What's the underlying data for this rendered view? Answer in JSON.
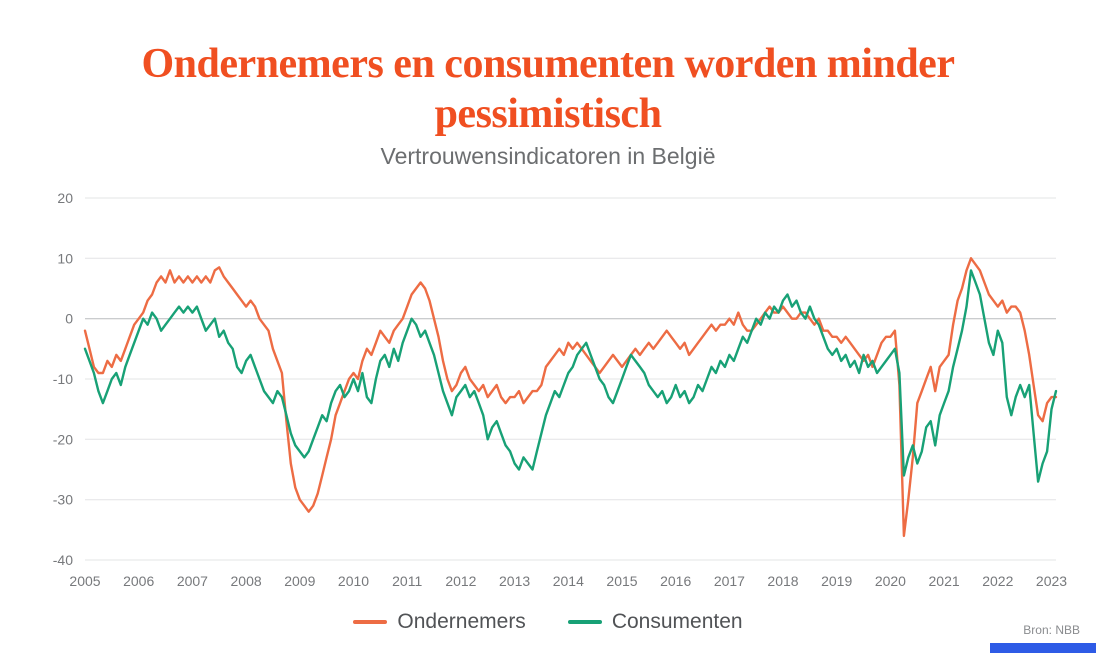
{
  "header": {
    "title": "Ondernemers en consumenten worden minder pessimistisch"
  },
  "colors": {
    "title": "#F04F21",
    "grid": "#E3E4E6",
    "zero_line": "#B9BCBE",
    "tick_text": "#77797C",
    "accent_bar": "#2E5BE6",
    "ondernemers_line": "#ED6C44",
    "consumenten_line": "#18A176"
  },
  "chart_data": {
    "type": "line",
    "title": "Vertrouwensindicatoren in België",
    "frequency": "monthly",
    "x_start": "2005-01",
    "x_tick_labels": [
      "2005",
      "2006",
      "2007",
      "2008",
      "2009",
      "2010",
      "2011",
      "2012",
      "2013",
      "2014",
      "2015",
      "2016",
      "2017",
      "2018",
      "2019",
      "2020",
      "2021",
      "2022",
      "2023"
    ],
    "ylim": [
      -40,
      20
    ],
    "yticks": [
      20,
      10,
      0,
      -10,
      -20,
      -30,
      -40
    ],
    "grid": true,
    "legend_position": "bottom",
    "series": [
      {
        "name": "Ondernemers",
        "color": "#ED6C44",
        "values": [
          -2,
          -5,
          -8,
          -9,
          -9,
          -7,
          -8,
          -6,
          -7,
          -5,
          -3,
          -1,
          0,
          1,
          3,
          4,
          6,
          7,
          6,
          8,
          6,
          7,
          6,
          7,
          6,
          7,
          6,
          7,
          6,
          8,
          8.5,
          7,
          6,
          5,
          4,
          3,
          2,
          3,
          2,
          0,
          -1,
          -2,
          -5,
          -7,
          -9,
          -17,
          -24,
          -28,
          -30,
          -31,
          -32,
          -31,
          -29,
          -26,
          -23,
          -20,
          -16,
          -14,
          -12,
          -10,
          -9,
          -10,
          -7,
          -5,
          -6,
          -4,
          -2,
          -3,
          -4,
          -2,
          -1,
          0,
          2,
          4,
          5,
          6,
          5,
          3,
          0,
          -3,
          -7,
          -10,
          -12,
          -11,
          -9,
          -8,
          -10,
          -11,
          -12,
          -11,
          -13,
          -12,
          -11,
          -13,
          -14,
          -13,
          -13,
          -12,
          -14,
          -13,
          -12,
          -12,
          -11,
          -8,
          -7,
          -6,
          -5,
          -6,
          -4,
          -5,
          -4,
          -5,
          -6,
          -7,
          -8,
          -9,
          -8,
          -7,
          -6,
          -7,
          -8,
          -7,
          -6,
          -5,
          -6,
          -5,
          -4,
          -5,
          -4,
          -3,
          -2,
          -3,
          -4,
          -5,
          -4,
          -6,
          -5,
          -4,
          -3,
          -2,
          -1,
          -2,
          -1,
          -1,
          0,
          -1,
          1,
          -1,
          -2,
          -2,
          -1,
          0,
          1,
          2,
          1,
          1,
          2,
          1,
          0,
          0,
          1,
          1,
          0,
          -1,
          0,
          -2,
          -2,
          -3,
          -3,
          -4,
          -3,
          -4,
          -5,
          -6,
          -7,
          -6,
          -8,
          -6,
          -4,
          -3,
          -3,
          -2,
          -11,
          -36,
          -30,
          -23,
          -14,
          -12,
          -10,
          -8,
          -12,
          -8,
          -7,
          -6,
          -1,
          3,
          5,
          8,
          10,
          9,
          8,
          6,
          4,
          3,
          2,
          3,
          1,
          2,
          2,
          1,
          -2,
          -6,
          -11,
          -16,
          -17,
          -14,
          -13,
          -13
        ]
      },
      {
        "name": "Consumenten",
        "color": "#18A176",
        "values": [
          -5,
          -7,
          -9,
          -12,
          -14,
          -12,
          -10,
          -9,
          -11,
          -8,
          -6,
          -4,
          -2,
          0,
          -1,
          1,
          0,
          -2,
          -1,
          0,
          1,
          2,
          1,
          2,
          1,
          2,
          0,
          -2,
          -1,
          0,
          -3,
          -2,
          -4,
          -5,
          -8,
          -9,
          -7,
          -6,
          -8,
          -10,
          -12,
          -13,
          -14,
          -12,
          -13,
          -16,
          -19,
          -21,
          -22,
          -23,
          -22,
          -20,
          -18,
          -16,
          -17,
          -14,
          -12,
          -11,
          -13,
          -12,
          -10,
          -12,
          -9,
          -13,
          -14,
          -10,
          -7,
          -6,
          -8,
          -5,
          -7,
          -4,
          -2,
          0,
          -1,
          -3,
          -2,
          -4,
          -6,
          -9,
          -12,
          -14,
          -16,
          -13,
          -12,
          -11,
          -13,
          -12,
          -14,
          -16,
          -20,
          -18,
          -17,
          -19,
          -21,
          -22,
          -24,
          -25,
          -23,
          -24,
          -25,
          -22,
          -19,
          -16,
          -14,
          -12,
          -13,
          -11,
          -9,
          -8,
          -6,
          -5,
          -4,
          -6,
          -8,
          -10,
          -11,
          -13,
          -14,
          -12,
          -10,
          -8,
          -6,
          -7,
          -8,
          -9,
          -11,
          -12,
          -13,
          -12,
          -14,
          -13,
          -11,
          -13,
          -12,
          -14,
          -13,
          -11,
          -12,
          -10,
          -8,
          -9,
          -7,
          -8,
          -6,
          -7,
          -5,
          -3,
          -4,
          -2,
          0,
          -1,
          1,
          0,
          2,
          1,
          3,
          4,
          2,
          3,
          1,
          0,
          2,
          0,
          -1,
          -3,
          -5,
          -6,
          -5,
          -7,
          -6,
          -8,
          -7,
          -9,
          -6,
          -8,
          -7,
          -9,
          -8,
          -7,
          -6,
          -5,
          -9,
          -26,
          -23,
          -21,
          -24,
          -22,
          -18,
          -17,
          -21,
          -16,
          -14,
          -12,
          -8,
          -5,
          -2,
          2,
          8,
          6,
          4,
          0,
          -4,
          -6,
          -2,
          -4,
          -13,
          -16,
          -13,
          -11,
          -13,
          -11,
          -19,
          -27,
          -24,
          -22,
          -15,
          -12
        ]
      }
    ]
  },
  "footer": {
    "source": "Bron: NBB"
  }
}
